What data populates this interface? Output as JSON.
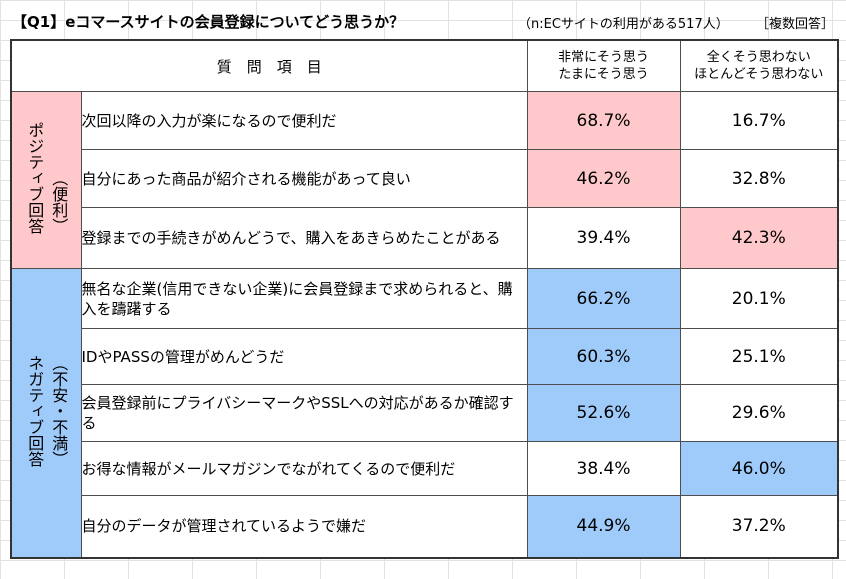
{
  "header": {
    "title": "【Q1】eコマースサイトの会員登録についてどう思うか？",
    "note": "（n:ECサイトの利用がある517人）",
    "answer_type": "［複数回答］"
  },
  "table": {
    "item_header": "質　問　項　目",
    "col1_header": [
      "非常にそう思う",
      "たまにそう思う"
    ],
    "col2_header": [
      "全くそう思わない",
      "ほとんどそう思わない"
    ],
    "groups": [
      {
        "label": "ポジティブ回答（便利）",
        "label_col1": "ポジティブ回答",
        "label_col2": "（便利）",
        "rows": [
          {
            "item": "次回以降の入力が楽になるので便利だ",
            "v1": "68.7%",
            "v2": "16.7%",
            "hl": 1
          },
          {
            "item": "自分にあった商品が紹介される機能があって良い",
            "v1": "46.2%",
            "v2": "32.8%",
            "hl": 1
          },
          {
            "item": "登録までの手続きがめんどうで、購入をあきらめたことがある",
            "v1": "39.4%",
            "v2": "42.3%",
            "hl": 2
          }
        ]
      },
      {
        "label": "ネガティブ回答（不安・不満）",
        "label_col1": "ネガティブ回答",
        "label_col2": "（不安・不満）",
        "rows": [
          {
            "item": "無名な企業(信用できない企業)に会員登録まで求められると、購入を躊躇する",
            "v1": "66.2%",
            "v2": "20.1%",
            "hl": 1
          },
          {
            "item": "IDやPASSの管理がめんどうだ",
            "v1": "60.3%",
            "v2": "25.1%",
            "hl": 1
          },
          {
            "item": "会員登録前にプライバシーマークやSSLへの対応があるか確認する",
            "v1": "52.6%",
            "v2": "29.6%",
            "hl": 1
          },
          {
            "item": "お得な情報がメールマガジンでながれてくるので便利だ",
            "v1": "38.4%",
            "v2": "46.0%",
            "hl": 2
          },
          {
            "item": "自分のデータが管理されているようで嫌だ",
            "v1": "44.9%",
            "v2": "37.2%",
            "hl": 1
          }
        ]
      }
    ]
  },
  "colors": {
    "positive": "#ffc9cb",
    "negative": "#9fcbfb",
    "border": "#4d4d4d"
  }
}
